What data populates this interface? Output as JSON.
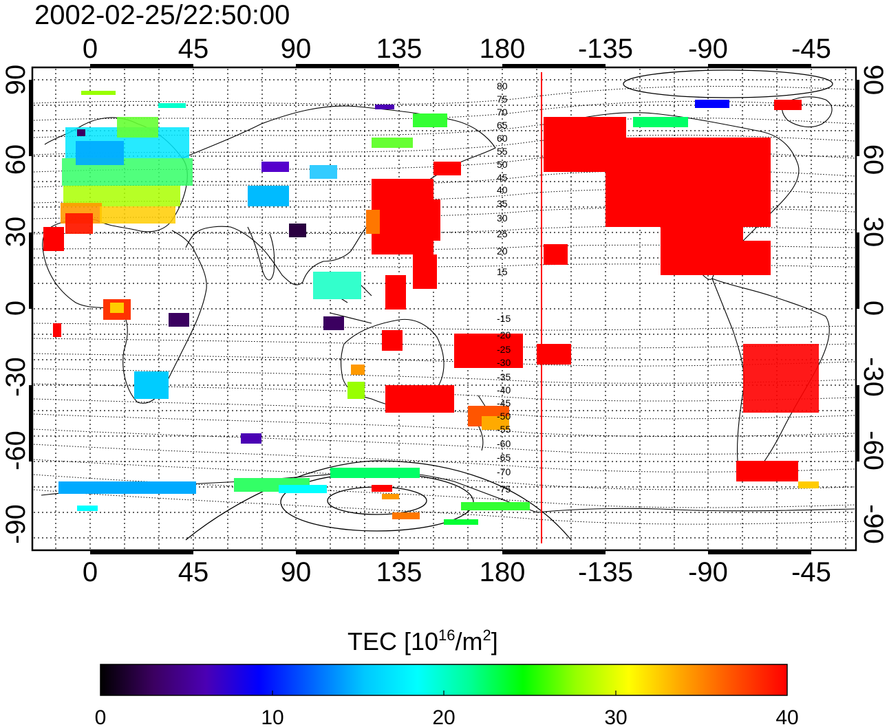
{
  "title": "2002-02-25/22:50:00",
  "axes": {
    "top_lon_labels": [
      "0",
      "45",
      "90",
      "135",
      "180",
      "-135",
      "-90",
      "-45"
    ],
    "bottom_lon_labels": [
      "0",
      "45",
      "90",
      "135",
      "180",
      "-135",
      "-90",
      "-45"
    ],
    "left_lat_labels": [
      "90",
      "60",
      "30",
      "0",
      "-30",
      "-60",
      "-90"
    ],
    "right_lat_labels": [
      "90",
      "60",
      "30",
      "0",
      "-30",
      "-60",
      "-90"
    ],
    "lon_range": [
      -25,
      335
    ],
    "lat_range": [
      -95,
      95
    ],
    "grid": "dotted"
  },
  "colorbar": {
    "label_main": "TEC  [10",
    "label_exp": "16",
    "label_unit": "/m",
    "label_unit_exp": "2",
    "label_close": "]",
    "ticks": [
      "0",
      "10",
      "20",
      "30",
      "40"
    ],
    "range": [
      0,
      40
    ],
    "colormap": [
      "#000000",
      "#3b0060",
      "#4b00b4",
      "#0000ff",
      "#0064ff",
      "#00c8ff",
      "#00ffff",
      "#00ff96",
      "#00ff00",
      "#96ff00",
      "#ffff00",
      "#ffa500",
      "#ff5000",
      "#ff0000"
    ]
  },
  "contours": {
    "north_labels": [
      "80",
      "75",
      "70",
      "65",
      "60",
      "55",
      "50",
      "45",
      "40",
      "35",
      "30",
      "25",
      "20",
      "15"
    ],
    "south_labels": [
      "-15",
      "-20",
      "-25",
      "-30",
      "-35",
      "-40",
      "-45",
      "-50",
      "-55",
      "-60",
      "-65",
      "-70",
      "-75"
    ]
  },
  "terminator_longitude": 200,
  "colors": {
    "terminator": "#ff0000",
    "frame": "#000000"
  }
}
